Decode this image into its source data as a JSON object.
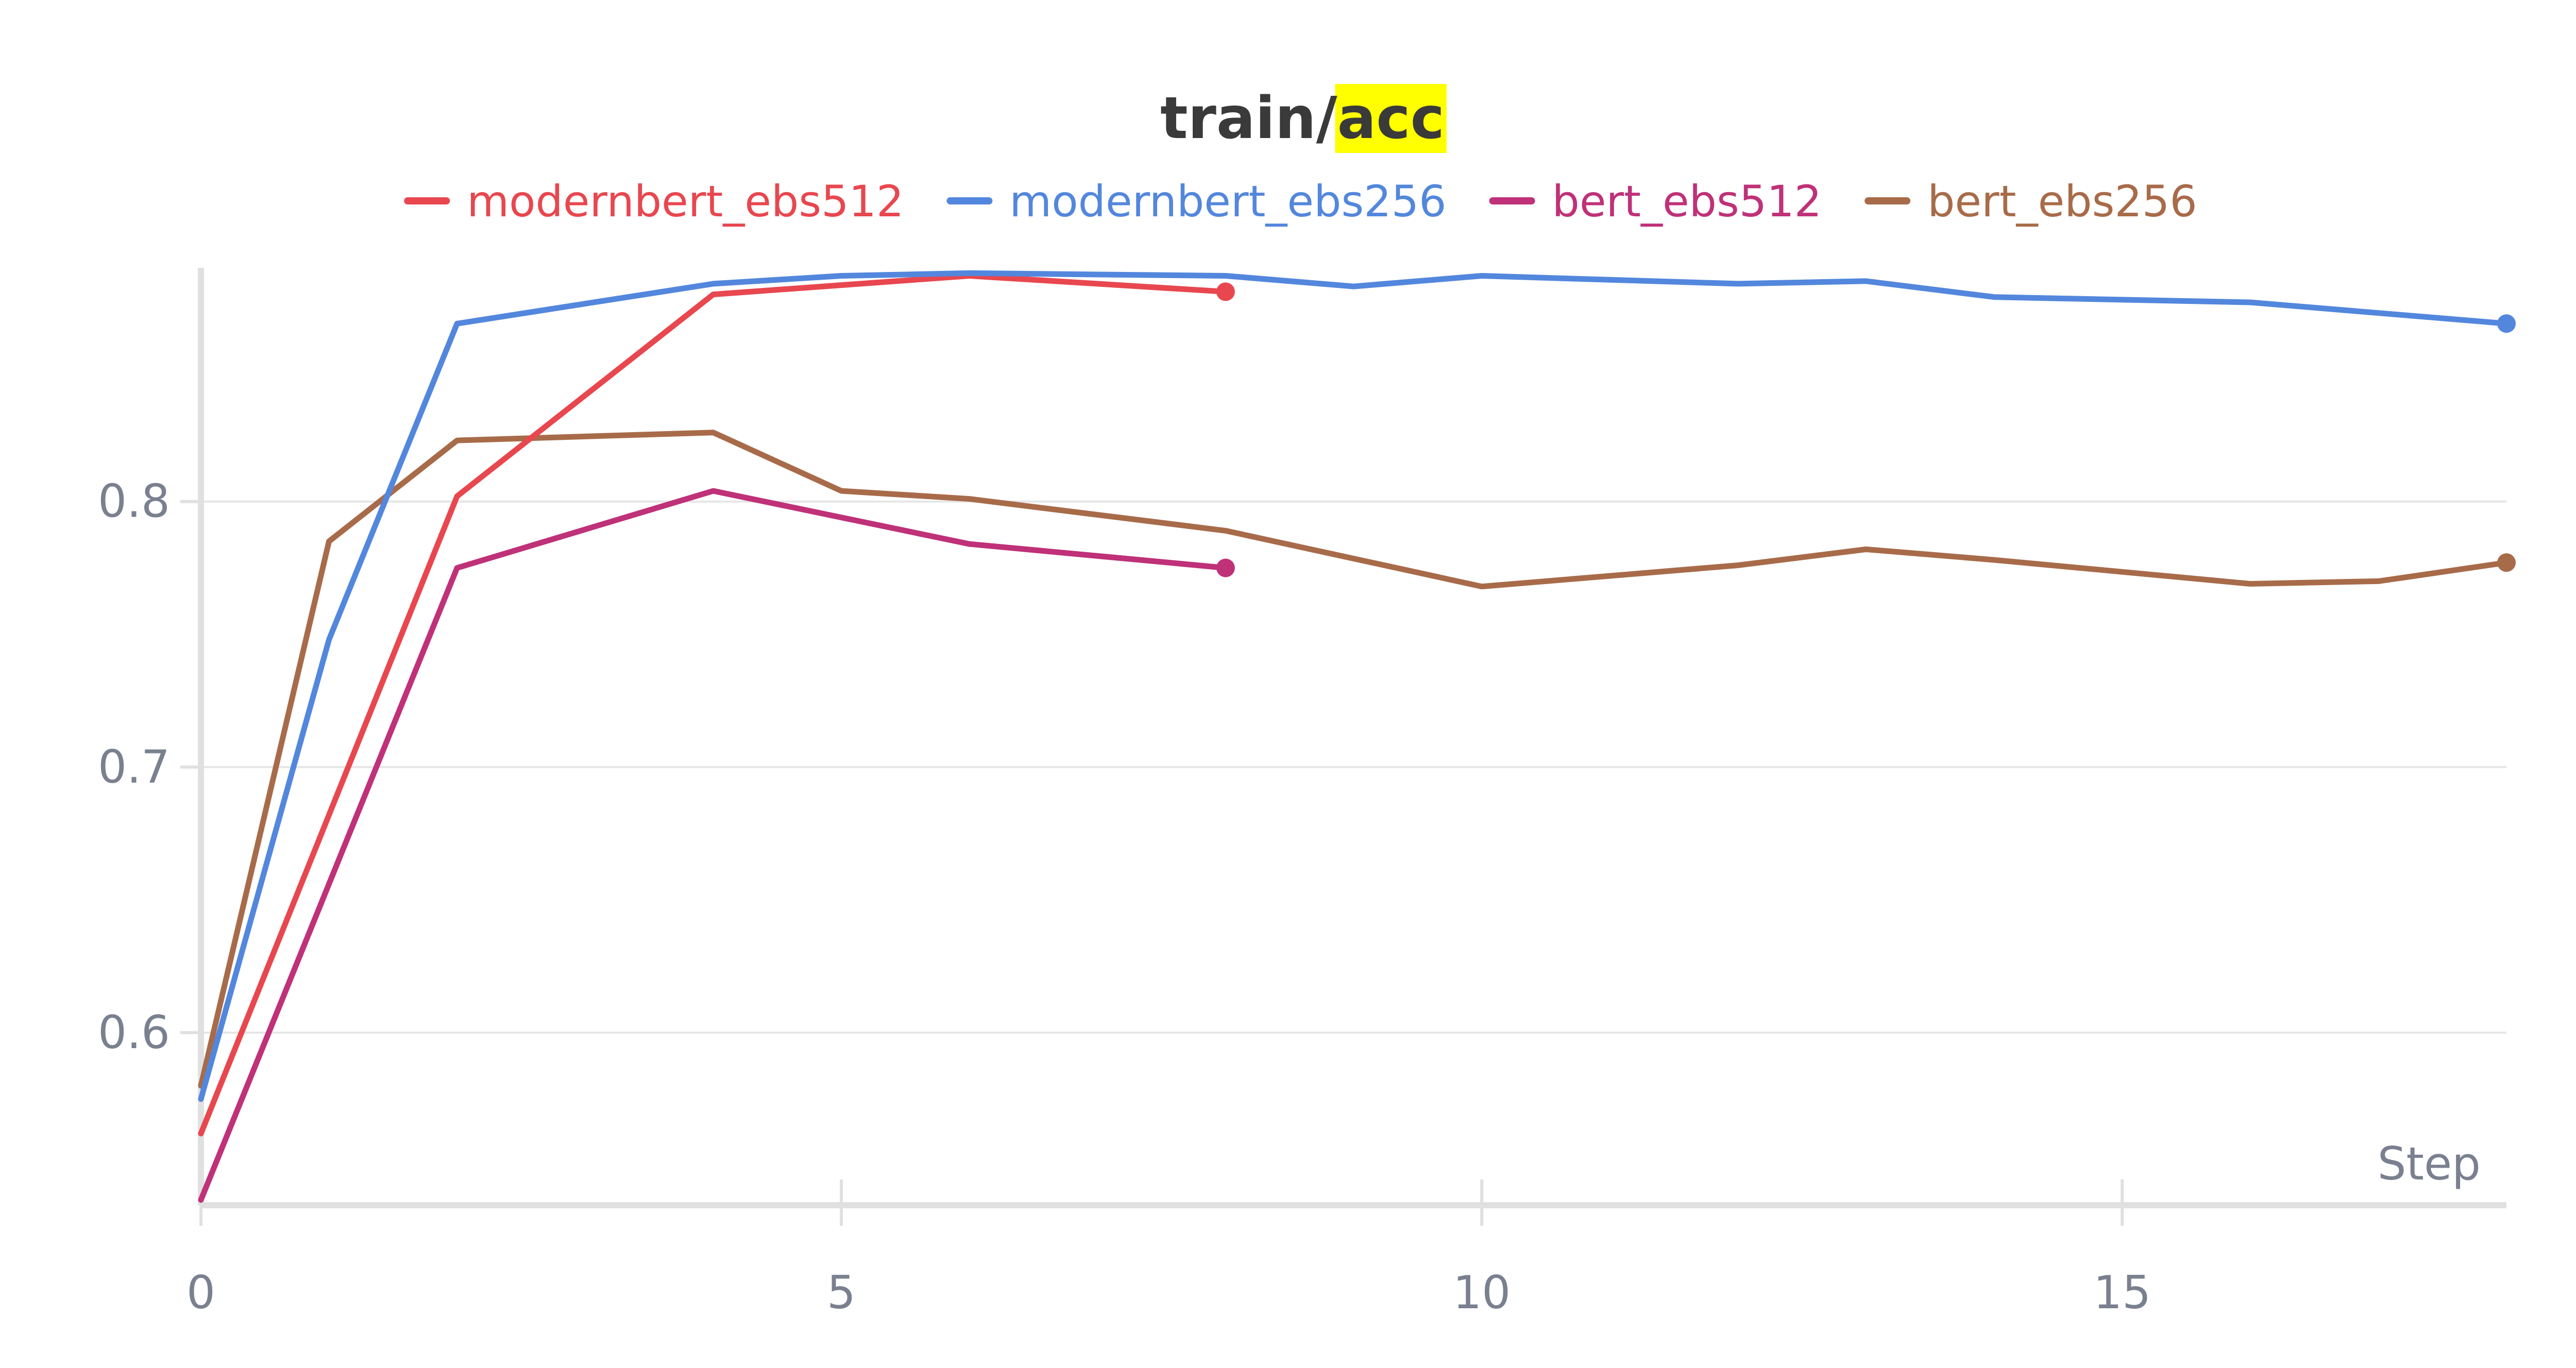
{
  "chart_data": {
    "type": "line",
    "title_prefix": "train/",
    "title_highlight": "acc",
    "highlight_color": "#ffff00",
    "xlabel": "Step",
    "ylabel": "",
    "xlim": [
      0,
      18
    ],
    "ylim": [
      0.535,
      0.888
    ],
    "x_ticks": [
      0,
      5,
      10,
      15
    ],
    "x_tick_labels": [
      "0",
      "5",
      "10",
      "15"
    ],
    "y_ticks": [
      0.6,
      0.7,
      0.8
    ],
    "y_tick_labels": [
      "0.6",
      "0.7",
      "0.8"
    ],
    "grid": true,
    "legend_position": "top",
    "series": [
      {
        "name": "modernbert_ebs512",
        "color": "#e8474f",
        "x": [
          0,
          2,
          4,
          6,
          8
        ],
        "y": [
          0.562,
          0.802,
          0.878,
          0.885,
          0.879
        ]
      },
      {
        "name": "modernbert_ebs256",
        "color": "#5387dd",
        "x": [
          0,
          1,
          2,
          4,
          5,
          6,
          8,
          9,
          10,
          12,
          13,
          14,
          16,
          18
        ],
        "y": [
          0.575,
          0.748,
          0.867,
          0.882,
          0.885,
          0.886,
          0.885,
          0.881,
          0.885,
          0.882,
          0.883,
          0.877,
          0.875,
          0.867
        ]
      },
      {
        "name": "bert_ebs512",
        "color": "#bf3178",
        "x": [
          0,
          2,
          4,
          6,
          8
        ],
        "y": [
          0.537,
          0.775,
          0.804,
          0.784,
          0.775
        ]
      },
      {
        "name": "bert_ebs256",
        "color": "#a86b4a",
        "x": [
          0,
          1,
          2,
          4,
          5,
          6,
          8,
          10,
          12,
          13,
          14,
          16,
          17,
          18
        ],
        "y": [
          0.58,
          0.785,
          0.823,
          0.826,
          0.804,
          0.801,
          0.789,
          0.768,
          0.776,
          0.782,
          0.778,
          0.769,
          0.77,
          0.777
        ]
      }
    ]
  }
}
